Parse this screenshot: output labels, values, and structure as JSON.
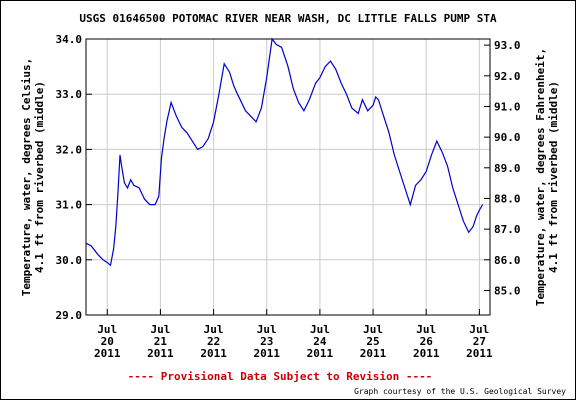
{
  "chart_data": {
    "type": "line",
    "title": "USGS 01646500 POTOMAC RIVER NEAR WASH, DC LITTLE FALLS PUMP STA",
    "ylabel_left": [
      "Temperature, water, degrees Celsius,",
      "4.1 ft from riverbed (middle)"
    ],
    "ylabel_right": [
      "Temperature, water, degrees Fahrenheit,",
      "4.1 ft from riverbed (middle)"
    ],
    "ylim_left": [
      29.0,
      34.0
    ],
    "ylim_right": [
      84.2,
      93.2
    ],
    "yticks_left": [
      "34.0",
      "33.0",
      "32.0",
      "31.0",
      "30.0",
      "29.0"
    ],
    "yticks_right": [
      "93.0",
      "92.0",
      "91.0",
      "90.0",
      "89.0",
      "88.0",
      "87.0",
      "86.0",
      "85.0"
    ],
    "xlim_days": [
      19.6,
      27.2
    ],
    "xticks": [
      {
        "month": "Jul",
        "day": "20",
        "year": "2011"
      },
      {
        "month": "Jul",
        "day": "21",
        "year": "2011"
      },
      {
        "month": "Jul",
        "day": "22",
        "year": "2011"
      },
      {
        "month": "Jul",
        "day": "23",
        "year": "2011"
      },
      {
        "month": "Jul",
        "day": "24",
        "year": "2011"
      },
      {
        "month": "Jul",
        "day": "25",
        "year": "2011"
      },
      {
        "month": "Jul",
        "day": "26",
        "year": "2011"
      },
      {
        "month": "Jul",
        "day": "27",
        "year": "2011"
      }
    ],
    "grid": true,
    "line_color": "#0000cc",
    "series": [
      {
        "name": "",
        "x": [
          19.6,
          19.7,
          19.82,
          19.92,
          20.0,
          20.06,
          20.12,
          20.16,
          20.2,
          20.24,
          20.27,
          20.32,
          20.38,
          20.44,
          20.5,
          20.6,
          20.7,
          20.8,
          20.9,
          20.97,
          21.02,
          21.07,
          21.12,
          21.2,
          21.3,
          21.4,
          21.5,
          21.6,
          21.7,
          21.8,
          21.9,
          22.0,
          22.1,
          22.2,
          22.3,
          22.38,
          22.45,
          22.5,
          22.6,
          22.7,
          22.8,
          22.9,
          23.0,
          23.1,
          23.18,
          23.28,
          23.4,
          23.5,
          23.6,
          23.7,
          23.8,
          23.92,
          24.0,
          24.1,
          24.2,
          24.3,
          24.4,
          24.5,
          24.6,
          24.72,
          24.8,
          24.9,
          25.0,
          25.05,
          25.1,
          25.2,
          25.3,
          25.4,
          25.5,
          25.6,
          25.7,
          25.8,
          25.9,
          26.0,
          26.1,
          26.2,
          26.3,
          26.4,
          26.5,
          26.6,
          26.7,
          26.8,
          26.88,
          26.95,
          27.0,
          27.06
        ],
        "y": [
          30.3,
          30.25,
          30.1,
          30.0,
          29.95,
          29.9,
          30.2,
          30.6,
          31.2,
          31.9,
          31.7,
          31.4,
          31.3,
          31.45,
          31.35,
          31.3,
          31.1,
          31.0,
          31.0,
          31.15,
          31.85,
          32.2,
          32.5,
          32.85,
          32.6,
          32.4,
          32.3,
          32.15,
          32.0,
          32.05,
          32.2,
          32.5,
          33.0,
          33.55,
          33.4,
          33.15,
          33.0,
          32.9,
          32.7,
          32.6,
          32.5,
          32.75,
          33.3,
          34.0,
          33.9,
          33.85,
          33.5,
          33.1,
          32.85,
          32.7,
          32.9,
          33.2,
          33.3,
          33.5,
          33.6,
          33.45,
          33.2,
          33.0,
          32.75,
          32.65,
          32.9,
          32.7,
          32.8,
          32.95,
          32.9,
          32.6,
          32.3,
          31.9,
          31.6,
          31.3,
          31.0,
          31.35,
          31.45,
          31.6,
          31.9,
          32.15,
          31.95,
          31.7,
          31.3,
          31.0,
          30.7,
          30.5,
          30.6,
          30.8,
          30.9,
          31.0
        ]
      }
    ],
    "annotation": "---- Provisional Data Subject to Revision ----",
    "annotation_color": "#cc0000",
    "credit": "Graph courtesy of the U.S. Geological Survey"
  }
}
